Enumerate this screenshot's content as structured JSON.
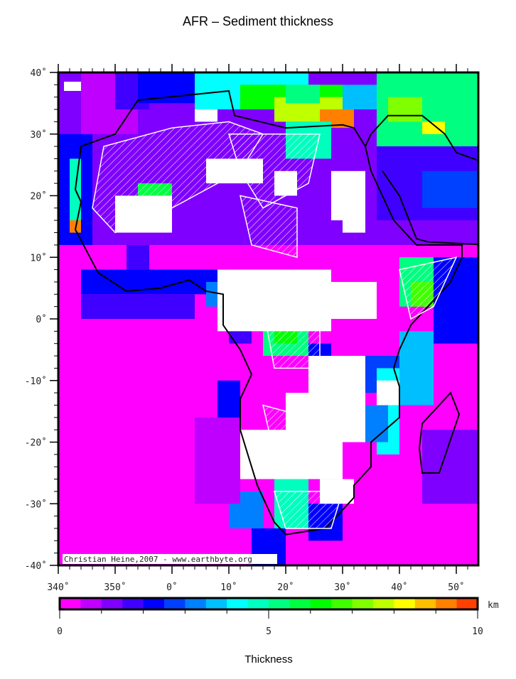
{
  "title": "AFR – Sediment thickness",
  "credit": "Christian Heine,2007 - www.earthbyte.org",
  "map": {
    "lat_ticks": [
      "40˚",
      "30˚",
      "20˚",
      "10˚",
      "0˚",
      "-10˚",
      "-20˚",
      "-30˚",
      "-40˚"
    ],
    "lon_ticks": [
      "340˚",
      "350˚",
      "0˚",
      "10˚",
      "20˚",
      "30˚",
      "40˚",
      "50˚"
    ],
    "lat_range": [
      -40,
      40
    ],
    "lon_range": [
      340,
      54
    ],
    "background_value_color": "#ff00ff",
    "no_data_color": "#ffffff"
  },
  "colorbar": {
    "unit": "km",
    "label": "Thickness",
    "range": [
      0,
      10
    ],
    "tick_labels": [
      "0",
      "5",
      "10"
    ],
    "colors": [
      "#ff00ff",
      "#bf00ff",
      "#8000ff",
      "#4000ff",
      "#0000ff",
      "#0040ff",
      "#0080ff",
      "#00bfff",
      "#00ffff",
      "#00ffbf",
      "#00ff80",
      "#00ff40",
      "#00ff00",
      "#40ff00",
      "#80ff00",
      "#bfff00",
      "#ffff00",
      "#ffbf00",
      "#ff8000",
      "#ff4000"
    ]
  }
}
